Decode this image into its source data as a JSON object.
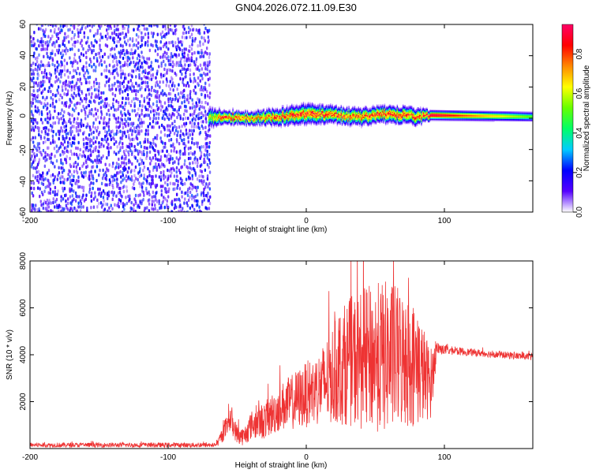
{
  "title": "GN04.2026.072.11.09.E30",
  "chart_data": [
    {
      "type": "heatmap",
      "name": "spectrogram",
      "xlabel": "Height of straight line (km)",
      "ylabel": "Frequency (Hz)",
      "xlim": [
        -200,
        164
      ],
      "ylim": [
        -60,
        60
      ],
      "xticks": [
        -200,
        -100,
        0,
        100
      ],
      "yticks": [
        -60,
        -40,
        -20,
        0,
        20,
        40,
        60
      ],
      "noise_region": {
        "x_range": [
          -200,
          -71
        ],
        "freq_range": [
          -60,
          60
        ],
        "amplitude_range": [
          0.05,
          0.25
        ]
      },
      "signal_band": {
        "x": [
          -71,
          -60,
          -40,
          -20,
          0,
          20,
          40,
          60,
          80,
          90,
          164
        ],
        "center_freq": [
          0,
          1,
          0,
          1,
          3,
          2,
          1,
          3,
          1,
          2,
          1
        ],
        "half_width": [
          6,
          4,
          4,
          5,
          6,
          5,
          5,
          5,
          5,
          3,
          3
        ],
        "peak_amplitude": [
          0.6,
          0.9,
          0.8,
          0.85,
          0.9,
          0.85,
          0.85,
          0.9,
          0.85,
          0.95,
          0.5
        ]
      },
      "colorbar": {
        "label": "Normalized spectral amplitude",
        "range": [
          0.0,
          0.95
        ],
        "ticks": [
          "0.0",
          "0.2",
          "0.4",
          "0.6",
          "0.8"
        ],
        "tick_values": [
          0.0,
          0.2,
          0.4,
          0.6,
          0.8
        ],
        "colors": [
          "#ffffff",
          "#5500ff",
          "#0000ff",
          "#00ccff",
          "#00ff66",
          "#66ff00",
          "#ffff00",
          "#ff8800",
          "#ff0000",
          "#ff0066"
        ]
      }
    },
    {
      "type": "line",
      "name": "snr",
      "xlabel": "Height of straight line (km)",
      "ylabel": "SNR (10 * v/v)",
      "xlim": [
        -200,
        164
      ],
      "ylim": [
        0,
        8000
      ],
      "xticks": [
        -200,
        -100,
        0,
        100
      ],
      "yticks": [
        2000,
        4000,
        6000,
        8000
      ],
      "color": "#ee3333",
      "series": [
        {
          "name": "SNR",
          "x": [
            -200,
            -150,
            -100,
            -65,
            -58,
            -56,
            -50,
            -45,
            -40,
            -30,
            -20,
            -10,
            0,
            10,
            20,
            30,
            40,
            50,
            60,
            70,
            80,
            90,
            95,
            100,
            120,
            140,
            164
          ],
          "mean": [
            150,
            150,
            150,
            150,
            900,
            1400,
            600,
            500,
            1000,
            1200,
            1700,
            2000,
            2300,
            2600,
            3200,
            3700,
            3800,
            3900,
            3900,
            3800,
            3500,
            2800,
            4300,
            4200,
            4100,
            4000,
            3900
          ],
          "spread": [
            100,
            100,
            100,
            100,
            500,
            600,
            400,
            400,
            600,
            800,
            1000,
            1200,
            1400,
            1600,
            2200,
            2700,
            3000,
            3200,
            3300,
            3000,
            2600,
            1500,
            300,
            200,
            150,
            150,
            150
          ]
        }
      ]
    }
  ]
}
